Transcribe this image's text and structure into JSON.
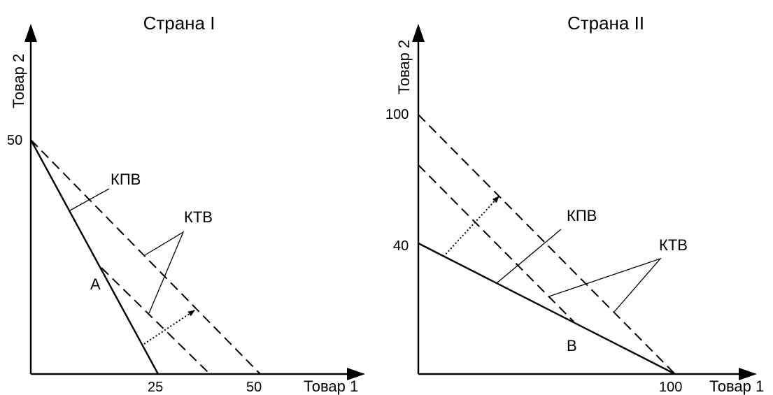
{
  "panels": [
    {
      "title": "Страна I",
      "y_axis_label": "Товар 2",
      "x_axis_label": "Товар 1",
      "y_ticks": [
        "50"
      ],
      "x_ticks": [
        "25",
        "50"
      ],
      "labels": {
        "kpv": "КПВ",
        "ktv": "КТВ",
        "point": "A"
      }
    },
    {
      "title": "Страна II",
      "y_axis_label": "Товар 2",
      "x_axis_label": "Товар 1",
      "y_ticks": [
        "100",
        "40"
      ],
      "x_ticks": [
        "100"
      ],
      "labels": {
        "kpv": "КПВ",
        "ktv": "КТВ",
        "point": "B"
      }
    }
  ]
}
